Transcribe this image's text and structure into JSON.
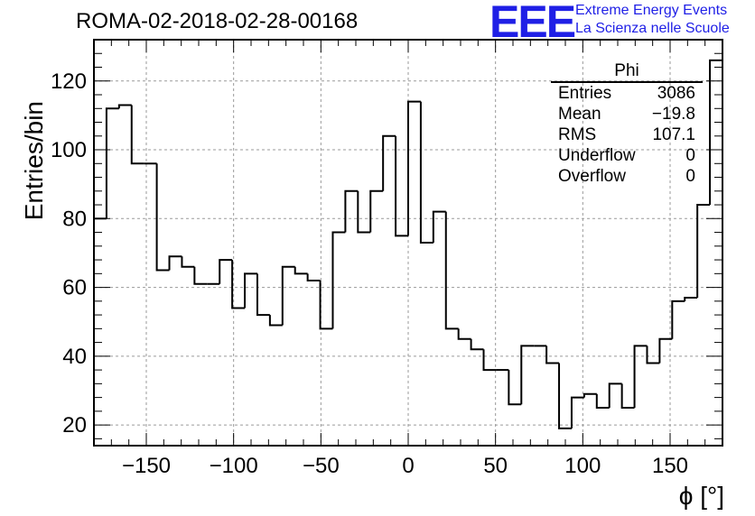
{
  "chart_data": {
    "type": "bar",
    "style": "step-histogram",
    "title": "ROMA-02-2018-02-28-00168",
    "xlabel": "ϕ [°]",
    "ylabel": "Entries/bin",
    "xlim": [
      -180,
      180
    ],
    "ylim": [
      14,
      132
    ],
    "x_ticks": [
      -150,
      -100,
      -50,
      0,
      50,
      100,
      150
    ],
    "y_ticks": [
      20,
      40,
      60,
      80,
      100,
      120
    ],
    "grid": true,
    "bin_width": 7.2,
    "bin_edges": [
      -180,
      -172.8,
      -165.6,
      -158.4,
      -151.2,
      -144,
      -136.8,
      -129.6,
      -122.4,
      -115.2,
      -108,
      -100.8,
      -93.6,
      -86.4,
      -79.2,
      -72,
      -64.8,
      -57.6,
      -50.4,
      -43.2,
      -36,
      -28.8,
      -21.6,
      -14.4,
      -7.2,
      0,
      7.2,
      14.4,
      21.6,
      28.8,
      36,
      43.2,
      50.4,
      57.6,
      64.8,
      72,
      79.2,
      86.4,
      93.6,
      100.8,
      108,
      115.2,
      122.4,
      129.6,
      136.8,
      144,
      151.2,
      158.4,
      165.6,
      172.8,
      180
    ],
    "values": [
      80,
      112,
      113,
      96,
      96,
      65,
      69,
      66,
      61,
      61,
      68,
      54,
      64,
      52,
      49,
      66,
      64,
      62,
      48,
      76,
      88,
      76,
      88,
      104,
      75,
      114,
      73,
      82,
      48,
      45,
      42,
      36,
      36,
      26,
      43,
      43,
      38,
      19,
      28,
      29,
      25,
      32,
      25,
      43,
      38,
      45,
      56,
      57,
      84,
      126
    ]
  },
  "stats_box": {
    "name": "Phi",
    "rows": [
      {
        "label": "Entries",
        "value": "3086"
      },
      {
        "label": "Mean",
        "value": "−19.8"
      },
      {
        "label": "RMS",
        "value": "107.1"
      },
      {
        "label": "Underflow",
        "value": "0"
      },
      {
        "label": "Overflow",
        "value": "0"
      }
    ]
  },
  "logo": {
    "mark": "EEE",
    "line1": "Extreme Energy Events",
    "line2": "La Scienza nelle Scuole",
    "color": "#1f1fe6"
  }
}
